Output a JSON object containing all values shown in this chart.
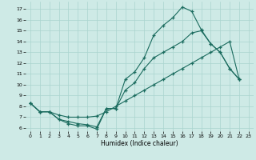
{
  "xlabel": "Humidex (Indice chaleur)",
  "bg_color": "#ceeae6",
  "grid_color": "#aad4cf",
  "line_color": "#1a6b5e",
  "xlim": [
    -0.5,
    23.5
  ],
  "ylim": [
    5.7,
    17.7
  ],
  "xticks": [
    0,
    1,
    2,
    3,
    4,
    5,
    6,
    7,
    8,
    9,
    10,
    11,
    12,
    13,
    14,
    15,
    16,
    17,
    18,
    19,
    20,
    21,
    22,
    23
  ],
  "yticks": [
    6,
    7,
    8,
    9,
    10,
    11,
    12,
    13,
    14,
    15,
    16,
    17
  ],
  "line1_x": [
    0,
    1,
    2,
    3,
    4,
    5,
    6,
    7,
    8,
    9,
    10,
    11,
    12,
    13,
    14,
    15,
    16,
    17,
    18,
    19,
    20,
    21,
    22
  ],
  "line1_y": [
    8.3,
    7.5,
    7.5,
    6.8,
    6.4,
    6.2,
    6.2,
    5.9,
    7.8,
    7.8,
    10.5,
    11.2,
    12.5,
    14.6,
    15.5,
    16.2,
    17.2,
    16.8,
    15.1,
    13.8,
    13.0,
    11.5,
    10.5
  ],
  "line2_x": [
    0,
    1,
    2,
    3,
    4,
    5,
    6,
    7,
    8,
    9,
    10,
    11,
    12,
    13,
    14,
    15,
    16,
    17,
    18,
    19,
    20,
    21,
    22
  ],
  "line2_y": [
    8.3,
    7.5,
    7.5,
    6.8,
    6.6,
    6.4,
    6.3,
    6.1,
    7.8,
    7.8,
    9.5,
    10.2,
    11.5,
    12.5,
    13.0,
    13.5,
    14.0,
    14.8,
    15.0,
    13.8,
    13.0,
    11.5,
    10.5
  ],
  "line3_x": [
    0,
    1,
    2,
    3,
    4,
    5,
    6,
    7,
    8,
    9,
    10,
    11,
    12,
    13,
    14,
    15,
    16,
    17,
    18,
    19,
    20,
    21,
    22
  ],
  "line3_y": [
    8.3,
    7.5,
    7.5,
    7.2,
    7.0,
    7.0,
    7.0,
    7.1,
    7.5,
    8.0,
    8.5,
    9.0,
    9.5,
    10.0,
    10.5,
    11.0,
    11.5,
    12.0,
    12.5,
    13.0,
    13.5,
    14.0,
    10.5
  ]
}
